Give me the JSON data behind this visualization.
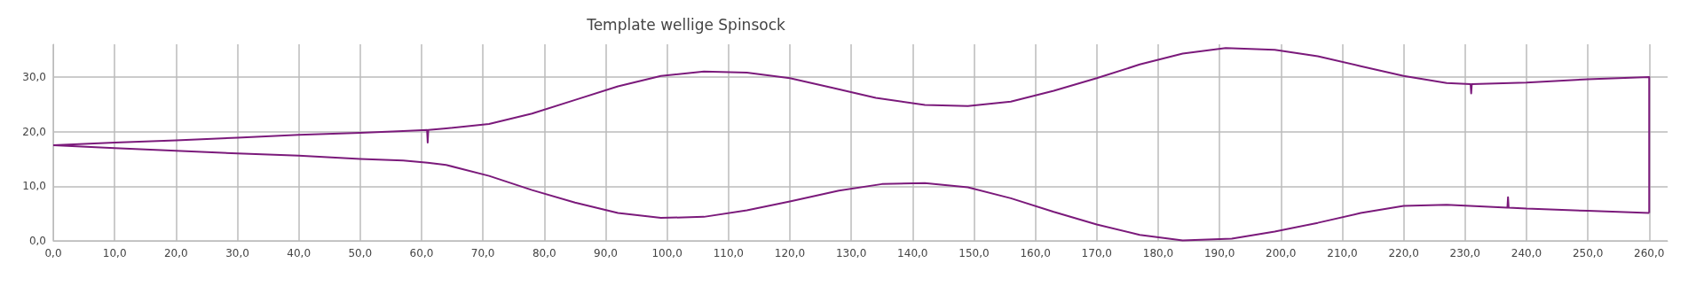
{
  "chart_data": {
    "type": "line",
    "title": "Template wellige Spinsock",
    "series": [
      {
        "color": "#7b1a7b",
        "x": [
          0,
          10,
          20,
          30,
          40,
          50,
          57,
          60.9,
          61,
          61.1,
          64,
          71,
          78,
          85,
          92,
          99,
          106,
          113,
          120,
          127,
          134,
          142,
          149,
          156,
          163,
          170,
          177,
          184,
          191,
          199,
          206,
          213,
          220,
          227,
          230.9,
          231,
          231.1,
          240,
          250,
          260,
          260
        ],
        "values": [
          17.5,
          18,
          18.4,
          18.9,
          19.4,
          19.8,
          20.1,
          20.3,
          18,
          20.3,
          20.6,
          21.4,
          23.3,
          25.8,
          28.3,
          30.2,
          31,
          30.8,
          29.8,
          28,
          26.2,
          24.9,
          24.7,
          25.5,
          27.5,
          29.8,
          32.3,
          34.3,
          35.3,
          35,
          33.8,
          32,
          30.2,
          28.9,
          28.7,
          27,
          28.7,
          29,
          29.6,
          30,
          5.1
        ]
      },
      {
        "color": "#7b1a7b",
        "x": [
          0,
          10,
          20,
          30,
          40,
          50,
          57,
          61,
          64,
          71,
          78,
          85,
          92,
          99,
          106,
          113,
          120,
          128,
          135,
          142,
          149,
          156,
          163,
          170,
          177,
          184,
          192,
          199,
          206,
          213,
          220,
          227,
          236.9,
          237,
          237.1,
          240,
          250,
          260
        ],
        "values": [
          17.5,
          17,
          16.5,
          16,
          15.6,
          15,
          14.7,
          14.3,
          13.9,
          11.9,
          9.3,
          7,
          5.1,
          4.2,
          4.4,
          5.6,
          7.2,
          9.2,
          10.4,
          10.6,
          9.8,
          7.8,
          5.3,
          3,
          1.1,
          0.1,
          0.4,
          1.7,
          3.3,
          5.1,
          6.4,
          6.6,
          6.1,
          8,
          6.1,
          5.9,
          5.5,
          5.1
        ]
      }
    ],
    "xlim": [
      0,
      263
    ],
    "ylim": [
      0,
      36
    ],
    "xticks": [
      {
        "value": 0,
        "label": "0,0"
      },
      {
        "value": 10,
        "label": "10,0"
      },
      {
        "value": 20,
        "label": "20,0"
      },
      {
        "value": 30,
        "label": "30,0"
      },
      {
        "value": 40,
        "label": "40,0"
      },
      {
        "value": 50,
        "label": "50,0"
      },
      {
        "value": 60,
        "label": "60,0"
      },
      {
        "value": 70,
        "label": "70,0"
      },
      {
        "value": 80,
        "label": "80,0"
      },
      {
        "value": 90,
        "label": "90,0"
      },
      {
        "value": 100,
        "label": "100,0"
      },
      {
        "value": 110,
        "label": "110,0"
      },
      {
        "value": 120,
        "label": "120,0"
      },
      {
        "value": 130,
        "label": "130,0"
      },
      {
        "value": 140,
        "label": "140,0"
      },
      {
        "value": 150,
        "label": "150,0"
      },
      {
        "value": 160,
        "label": "160,0"
      },
      {
        "value": 170,
        "label": "170,0"
      },
      {
        "value": 180,
        "label": "180,0"
      },
      {
        "value": 190,
        "label": "190,0"
      },
      {
        "value": 200,
        "label": "200,0"
      },
      {
        "value": 210,
        "label": "210,0"
      },
      {
        "value": 220,
        "label": "220,0"
      },
      {
        "value": 230,
        "label": "230,0"
      },
      {
        "value": 240,
        "label": "240,0"
      },
      {
        "value": 250,
        "label": "250,0"
      },
      {
        "value": 260,
        "label": "260,0"
      }
    ],
    "yticks": [
      {
        "value": 0,
        "label": "0,0"
      },
      {
        "value": 10,
        "label": "10,0"
      },
      {
        "value": 20,
        "label": "20,0"
      },
      {
        "value": 30,
        "label": "30,0"
      }
    ],
    "grid": true,
    "marker": "none",
    "line_style": "solid"
  }
}
